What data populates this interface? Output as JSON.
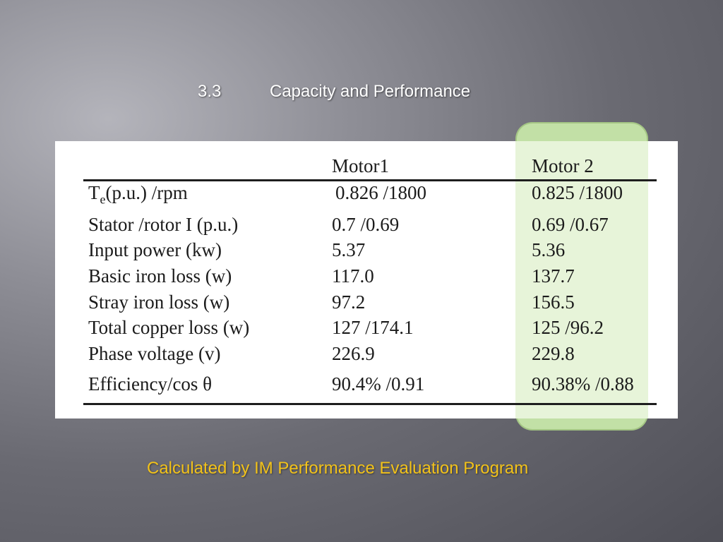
{
  "slide": {
    "section_number": "3.3",
    "section_title": "Capacity and Performance",
    "caption": "Calculated by IM Performance Evaluation Program",
    "highlight_color": "#c2e0a6",
    "caption_color": "#f2c21a"
  },
  "table": {
    "headers": [
      "",
      "Motor1",
      "Motor 2"
    ],
    "rows": [
      {
        "label_main": "T",
        "label_sub": "e",
        "label_rest": "(p.u.) /rpm",
        "motor1": "0.826 /1800",
        "motor2": "0.825 /1800"
      },
      {
        "label": "Stator /rotor I (p.u.)",
        "motor1": "0.7 /0.69",
        "motor2": "0.69 /0.67"
      },
      {
        "label": "Input power (kw)",
        "motor1": "5.37",
        "motor2": "5.36"
      },
      {
        "label": "Basic iron loss (w)",
        "motor1": "117.0",
        "motor2": "137.7"
      },
      {
        "label": "Stray iron loss (w)",
        "motor1": "97.2",
        "motor2": "156.5"
      },
      {
        "label": "Total copper loss (w)",
        "motor1": "127 /174.1",
        "motor2": "125 /96.2"
      },
      {
        "label": "Phase voltage (v)",
        "motor1": "226.9",
        "motor2": "229.8"
      },
      {
        "label": "Efficiency/cos θ",
        "motor1": "90.4% /0.91",
        "motor2": "90.38% /0.88"
      }
    ]
  }
}
